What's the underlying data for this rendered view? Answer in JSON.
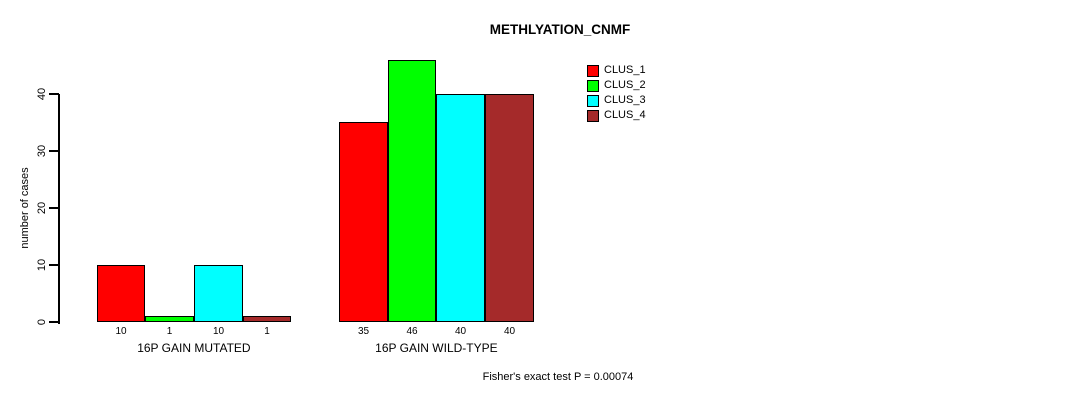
{
  "title": "METHLYATION_CNMF",
  "ylabel": "number of cases",
  "footer": "Fisher's exact test P = 0.00074",
  "chart_data": {
    "type": "bar",
    "title": "METHLYATION_CNMF",
    "ylabel": "number of cases",
    "xlabel": "",
    "categories": [
      "16P GAIN MUTATED",
      "16P GAIN WILD-TYPE"
    ],
    "series": [
      {
        "name": "CLUS_1",
        "color": "#FF0000",
        "values": [
          10,
          35
        ]
      },
      {
        "name": "CLUS_2",
        "color": "#00FF00",
        "values": [
          1,
          46
        ]
      },
      {
        "name": "CLUS_3",
        "color": "#00FFFF",
        "values": [
          10,
          40
        ]
      },
      {
        "name": "CLUS_4",
        "color": "#A52A2A",
        "values": [
          1,
          40
        ]
      }
    ],
    "bar_value_labels": [
      [
        "10",
        "1",
        "10",
        "1"
      ],
      [
        "35",
        "46",
        "40",
        "40"
      ]
    ],
    "y_ticks": [
      0,
      10,
      20,
      30,
      40
    ],
    "ylim": [
      0,
      46
    ],
    "grid": false,
    "legend_position": "top-right",
    "annotation": "Fisher's exact test P = 0.00074"
  }
}
